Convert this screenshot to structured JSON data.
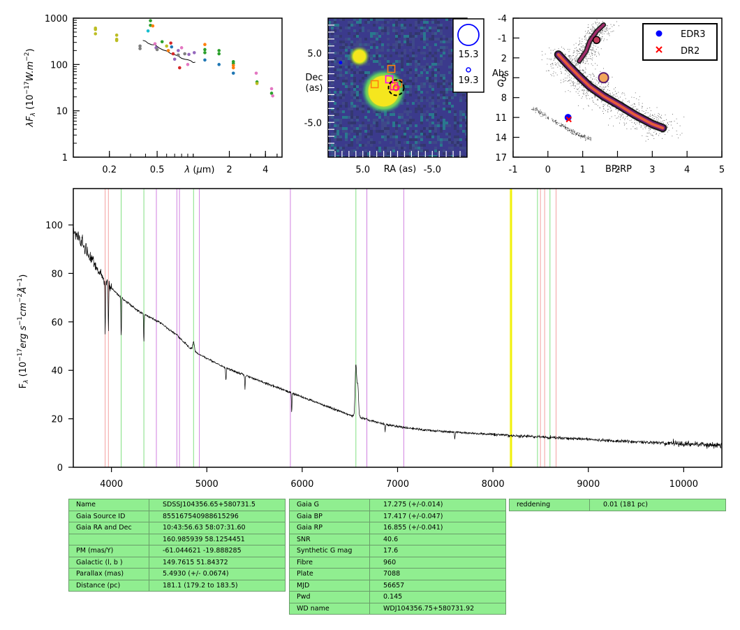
{
  "colors": {
    "frame": "#000000",
    "spectrum": "#000000",
    "table_fill": "#90ee90",
    "line_red": "#f4a0a0",
    "line_green": "#80e080",
    "line_purple": "#d080e0",
    "line_yellow": "#f0f000",
    "edr3": "#0000ff",
    "dr2": "#ff0000",
    "image_bg": "#3b3a8c",
    "image_source": "#f5e61e"
  },
  "chart_data": [
    {
      "type": "scatter",
      "panel": "sed",
      "title": "",
      "xlabel": "λ (μm)",
      "ylabel": "λF_λ (10^-17 W.m^-2)",
      "xscale": "log",
      "yscale": "log",
      "xlim": [
        0.1,
        5.5
      ],
      "ylim": [
        1,
        1000
      ],
      "x_ticks": [
        0.2,
        0.5,
        2,
        4
      ],
      "x_tick_labels": [
        "0.2",
        "0.5",
        "2",
        "4"
      ],
      "y_ticks": [
        1,
        10,
        100,
        1000
      ],
      "y_tick_labels": [
        "1",
        "10",
        "100",
        "1000"
      ],
      "points": [
        {
          "x": 0.153,
          "y": 610,
          "color": "#bcbd22"
        },
        {
          "x": 0.153,
          "y": 570,
          "color": "#bcbd22"
        },
        {
          "x": 0.153,
          "y": 460,
          "color": "#bcbd22"
        },
        {
          "x": 0.23,
          "y": 430,
          "color": "#bcbd22"
        },
        {
          "x": 0.23,
          "y": 350,
          "color": "#bcbd22"
        },
        {
          "x": 0.23,
          "y": 330,
          "color": "#bcbd22"
        },
        {
          "x": 0.36,
          "y": 250,
          "color": "#7f7f7f"
        },
        {
          "x": 0.36,
          "y": 220,
          "color": "#7f7f7f"
        },
        {
          "x": 0.42,
          "y": 530,
          "color": "#17becf"
        },
        {
          "x": 0.44,
          "y": 880,
          "color": "#2ca02c"
        },
        {
          "x": 0.44,
          "y": 700,
          "color": "#2ca02c"
        },
        {
          "x": 0.46,
          "y": 680,
          "color": "#ff7f0e"
        },
        {
          "x": 0.48,
          "y": 280,
          "color": "#e377c2"
        },
        {
          "x": 0.49,
          "y": 230,
          "color": "#9467bd"
        },
        {
          "x": 0.5,
          "y": 210,
          "color": "#7f7f7f"
        },
        {
          "x": 0.55,
          "y": 310,
          "color": "#2ca02c"
        },
        {
          "x": 0.6,
          "y": 250,
          "color": "#bcbd22"
        },
        {
          "x": 0.62,
          "y": 200,
          "color": "#ff7f0e"
        },
        {
          "x": 0.65,
          "y": 290,
          "color": "#d62728"
        },
        {
          "x": 0.66,
          "y": 240,
          "color": "#1f77b4"
        },
        {
          "x": 0.68,
          "y": 170,
          "color": "#d62728"
        },
        {
          "x": 0.7,
          "y": 130,
          "color": "#9467bd"
        },
        {
          "x": 0.75,
          "y": 200,
          "color": "#9467bd"
        },
        {
          "x": 0.75,
          "y": 160,
          "color": "#7f7f7f"
        },
        {
          "x": 0.77,
          "y": 85,
          "color": "#d62728"
        },
        {
          "x": 0.8,
          "y": 230,
          "color": "#e377c2"
        },
        {
          "x": 0.85,
          "y": 170,
          "color": "#7f7f7f"
        },
        {
          "x": 0.9,
          "y": 100,
          "color": "#e377c2"
        },
        {
          "x": 0.92,
          "y": 165,
          "color": "#9467bd"
        },
        {
          "x": 1.02,
          "y": 180,
          "color": "#9467bd"
        },
        {
          "x": 1.25,
          "y": 270,
          "color": "#ff7f0e"
        },
        {
          "x": 1.25,
          "y": 210,
          "color": "#2ca02c"
        },
        {
          "x": 1.25,
          "y": 180,
          "color": "#2ca02c"
        },
        {
          "x": 1.25,
          "y": 125,
          "color": "#1f77b4"
        },
        {
          "x": 1.64,
          "y": 200,
          "color": "#2ca02c"
        },
        {
          "x": 1.64,
          "y": 170,
          "color": "#2ca02c"
        },
        {
          "x": 1.64,
          "y": 100,
          "color": "#1f77b4"
        },
        {
          "x": 2.16,
          "y": 115,
          "color": "#2ca02c"
        },
        {
          "x": 2.16,
          "y": 105,
          "color": "#2ca02c"
        },
        {
          "x": 2.16,
          "y": 95,
          "color": "#ff7f0e"
        },
        {
          "x": 2.16,
          "y": 85,
          "color": "#ff7f0e"
        },
        {
          "x": 2.16,
          "y": 65,
          "color": "#1f77b4"
        },
        {
          "x": 3.35,
          "y": 65,
          "color": "#e377c2"
        },
        {
          "x": 3.4,
          "y": 42,
          "color": "#2ca02c"
        },
        {
          "x": 3.4,
          "y": 39,
          "color": "#bcbd22"
        },
        {
          "x": 4.5,
          "y": 30,
          "color": "#e377c2"
        },
        {
          "x": 4.5,
          "y": 24,
          "color": "#2ca02c"
        },
        {
          "x": 4.6,
          "y": 21,
          "color": "#e377c2"
        }
      ],
      "spectrum_trace": [
        [
          0.38,
          330
        ],
        [
          0.4,
          310
        ],
        [
          0.42,
          290
        ],
        [
          0.45,
          270
        ],
        [
          0.48,
          250
        ],
        [
          0.52,
          230
        ],
        [
          0.56,
          215
        ],
        [
          0.6,
          195
        ],
        [
          0.65,
          180
        ],
        [
          0.7,
          165
        ],
        [
          0.75,
          150
        ],
        [
          0.8,
          140
        ],
        [
          0.85,
          130
        ],
        [
          0.9,
          125
        ],
        [
          0.95,
          118
        ],
        [
          1.0,
          112
        ],
        [
          1.04,
          106
        ]
      ]
    },
    {
      "type": "heatmap",
      "panel": "image",
      "xlabel": "RA (as)",
      "ylabel": "Dec\n(as)",
      "xlim": [
        10,
        -10
      ],
      "ylim": [
        -10,
        10
      ],
      "x_ticks": [
        5,
        -5
      ],
      "x_tick_labels": [
        "5.0",
        "-5.0"
      ],
      "y_ticks": [
        5,
        -5
      ],
      "y_tick_labels": [
        "5.0",
        "-5.0"
      ],
      "sources": [
        {
          "x": 2.0,
          "y": -0.5,
          "mag": 15.3
        },
        {
          "x": 5.5,
          "y": 4.5,
          "mag": 17.5
        },
        {
          "x": 2.6,
          "y": 3.0,
          "mag": 19.0
        },
        {
          "x": 8.2,
          "y": 3.6,
          "mag": 19.3
        }
      ],
      "markers": {
        "circle_center": [
          0.2,
          0.0
        ],
        "squares": [
          [
            3.3,
            0.5
          ],
          [
            1.2,
            1.2
          ],
          [
            0.5,
            0.2
          ],
          [
            -0.1,
            0.6
          ],
          [
            0.9,
            2.7
          ]
        ]
      },
      "legend_mags": [
        "15.3",
        "19.3"
      ]
    },
    {
      "type": "scatter",
      "panel": "hr_diagram",
      "xlabel": "BP-RP",
      "ylabel": "Abs\nG",
      "xlim": [
        -1,
        5
      ],
      "ylim": [
        17,
        -4
      ],
      "y_inverted": true,
      "x_ticks": [
        -1,
        0,
        1,
        2,
        3,
        4,
        5
      ],
      "x_tick_labels": [
        "-1",
        "0",
        "1",
        "2",
        "3",
        "4",
        "5"
      ],
      "y_ticks": [
        -4,
        -1,
        2,
        5,
        8,
        11,
        14,
        17
      ],
      "y_tick_labels": [
        "-4",
        "-1",
        "2",
        "5",
        "8",
        "11",
        "14",
        "17"
      ],
      "legend_position": "top-right",
      "series": [
        {
          "name": "EDR3",
          "marker": "circle",
          "color": "#0000ff",
          "x": [
            0.58
          ],
          "y": [
            11.0
          ]
        },
        {
          "name": "DR2",
          "marker": "x",
          "color": "#ff0000",
          "x": [
            0.6
          ],
          "y": [
            11.3
          ]
        }
      ],
      "main_sequence": [
        [
          0.3,
          1.5
        ],
        [
          0.6,
          3.2
        ],
        [
          0.9,
          4.8
        ],
        [
          1.2,
          6.3
        ],
        [
          1.6,
          7.8
        ],
        [
          2.0,
          9.0
        ],
        [
          2.5,
          10.6
        ],
        [
          3.0,
          12.0
        ],
        [
          3.3,
          12.6
        ]
      ],
      "giant_branch": [
        [
          0.9,
          2.5
        ],
        [
          1.1,
          1.0
        ],
        [
          1.2,
          -0.5
        ],
        [
          1.4,
          -2.0
        ],
        [
          1.6,
          -3.0
        ]
      ],
      "white_dwarf_sequence": [
        [
          -0.45,
          9.5
        ],
        [
          0.0,
          11.0
        ],
        [
          0.4,
          12.2
        ],
        [
          0.8,
          13.4
        ],
        [
          1.2,
          14.3
        ]
      ]
    },
    {
      "type": "line",
      "panel": "spectrum",
      "xlabel": "",
      "ylabel": "F_λ (10^-17 erg s^-1 cm^-2 Å^-1)",
      "xlim": [
        3600,
        10400
      ],
      "ylim": [
        0,
        115
      ],
      "x_ticks": [
        4000,
        5000,
        6000,
        7000,
        8000,
        9000,
        10000
      ],
      "x_tick_labels": [
        "4000",
        "5000",
        "6000",
        "7000",
        "8000",
        "9000",
        "10000"
      ],
      "y_ticks": [
        0,
        20,
        40,
        60,
        80,
        100
      ],
      "y_tick_labels": [
        "0",
        "20",
        "40",
        "60",
        "80",
        "100"
      ],
      "continuum": [
        [
          3600,
          98
        ],
        [
          3700,
          92
        ],
        [
          3800,
          85
        ],
        [
          3900,
          79
        ],
        [
          4000,
          74
        ],
        [
          4100,
          70
        ],
        [
          4200,
          67
        ],
        [
          4300,
          64
        ],
        [
          4400,
          62
        ],
        [
          4500,
          60
        ],
        [
          4600,
          57
        ],
        [
          4700,
          54
        ],
        [
          4800,
          50
        ],
        [
          4900,
          47
        ],
        [
          5000,
          45
        ],
        [
          5100,
          43
        ],
        [
          5200,
          41
        ],
        [
          5300,
          39.5
        ],
        [
          5400,
          38
        ],
        [
          5500,
          36.5
        ],
        [
          5600,
          35
        ],
        [
          5700,
          33.5
        ],
        [
          5800,
          32
        ],
        [
          5900,
          30.5
        ],
        [
          6000,
          29
        ],
        [
          6100,
          27.5
        ],
        [
          6200,
          26
        ],
        [
          6300,
          24.5
        ],
        [
          6400,
          23
        ],
        [
          6500,
          21.5
        ],
        [
          6600,
          20.5
        ],
        [
          6700,
          19.5
        ],
        [
          6800,
          18.5
        ],
        [
          6900,
          17.5
        ],
        [
          7000,
          16.8
        ],
        [
          7200,
          15.8
        ],
        [
          7400,
          15
        ],
        [
          7600,
          14.5
        ],
        [
          7800,
          14
        ],
        [
          8000,
          13.5
        ],
        [
          8200,
          13
        ],
        [
          8400,
          12.7
        ],
        [
          8600,
          12.3
        ],
        [
          8800,
          12
        ],
        [
          9000,
          11.5
        ],
        [
          9200,
          11
        ],
        [
          9400,
          10.7
        ],
        [
          9600,
          10.3
        ],
        [
          9800,
          10
        ],
        [
          10000,
          9.7
        ],
        [
          10200,
          9.4
        ],
        [
          10400,
          9
        ]
      ],
      "emission_lines": [
        {
          "x": 6563,
          "peak": 43
        },
        {
          "x": 6583,
          "peak": 34
        },
        {
          "x": 4861,
          "peak": 52
        }
      ],
      "absorption_lines": [
        {
          "x": 3934,
          "depth": 22
        },
        {
          "x": 3968,
          "depth": 20
        },
        {
          "x": 4102,
          "depth": 16
        },
        {
          "x": 4340,
          "depth": 12
        },
        {
          "x": 5890,
          "depth": 8
        },
        {
          "x": 5400,
          "depth": 6
        },
        {
          "x": 5200,
          "depth": 5
        },
        {
          "x": 6870,
          "depth": 3
        },
        {
          "x": 7600,
          "depth": 3
        }
      ],
      "reference_lines": [
        {
          "x": 3934,
          "color": "red"
        },
        {
          "x": 3968,
          "color": "red"
        },
        {
          "x": 4102,
          "color": "green"
        },
        {
          "x": 4340,
          "color": "green"
        },
        {
          "x": 4471,
          "color": "purple"
        },
        {
          "x": 4686,
          "color": "purple"
        },
        {
          "x": 4713,
          "color": "purple"
        },
        {
          "x": 4861,
          "color": "green"
        },
        {
          "x": 4922,
          "color": "purple"
        },
        {
          "x": 5876,
          "color": "purple"
        },
        {
          "x": 6563,
          "color": "green"
        },
        {
          "x": 6678,
          "color": "purple"
        },
        {
          "x": 7065,
          "color": "purple"
        },
        {
          "x": 8183,
          "color": "yellow"
        },
        {
          "x": 8195,
          "color": "yellow"
        },
        {
          "x": 8467,
          "color": "green"
        },
        {
          "x": 8498,
          "color": "red"
        },
        {
          "x": 8542,
          "color": "red"
        },
        {
          "x": 8598,
          "color": "green"
        },
        {
          "x": 8662,
          "color": "red"
        }
      ]
    }
  ],
  "tables": {
    "gaia_info": [
      {
        "key": "Name",
        "value": "SDSSJ104356.65+580731.5"
      },
      {
        "key": "Gaia Source ID",
        "value": "855167540988615296"
      },
      {
        "key": "Gaia RA and Dec",
        "value": "10:43:56.63    58:07:31.60"
      },
      {
        "key": "",
        "value": "160.985939    58.1254451"
      },
      {
        "key": "PM (mas/Y)",
        "value": "-61.044621    -19.888285"
      },
      {
        "key": "Galactic (l, b )",
        "value": "149.7615    51.84372"
      },
      {
        "key": "Parallax (mas)",
        "value": "5.4930 (+/- 0.0674)"
      },
      {
        "key": "Distance (pc)",
        "value": "181.1 (179.2 to 183.5)"
      }
    ],
    "photometry": [
      {
        "key": "Gaia G",
        "value": "17.275 (+/-0.014)"
      },
      {
        "key": "Gaia BP",
        "value": "17.417 (+/-0.047)"
      },
      {
        "key": "Gaia RP",
        "value": "16.855 (+/-0.041)"
      },
      {
        "key": "SNR",
        "value": "40.6"
      },
      {
        "key": "Synthetic G mag",
        "value": "17.6"
      },
      {
        "key": "Fibre",
        "value": "960"
      },
      {
        "key": "Plate",
        "value": "7088"
      },
      {
        "key": "MJD",
        "value": "56657"
      },
      {
        "key": "Pwd",
        "value": "0.145"
      },
      {
        "key": "WD name",
        "value": "WDJ104356.75+580731.92"
      }
    ],
    "extinction": [
      {
        "key": "reddening",
        "value": "0.01 (181 pc)"
      }
    ]
  }
}
